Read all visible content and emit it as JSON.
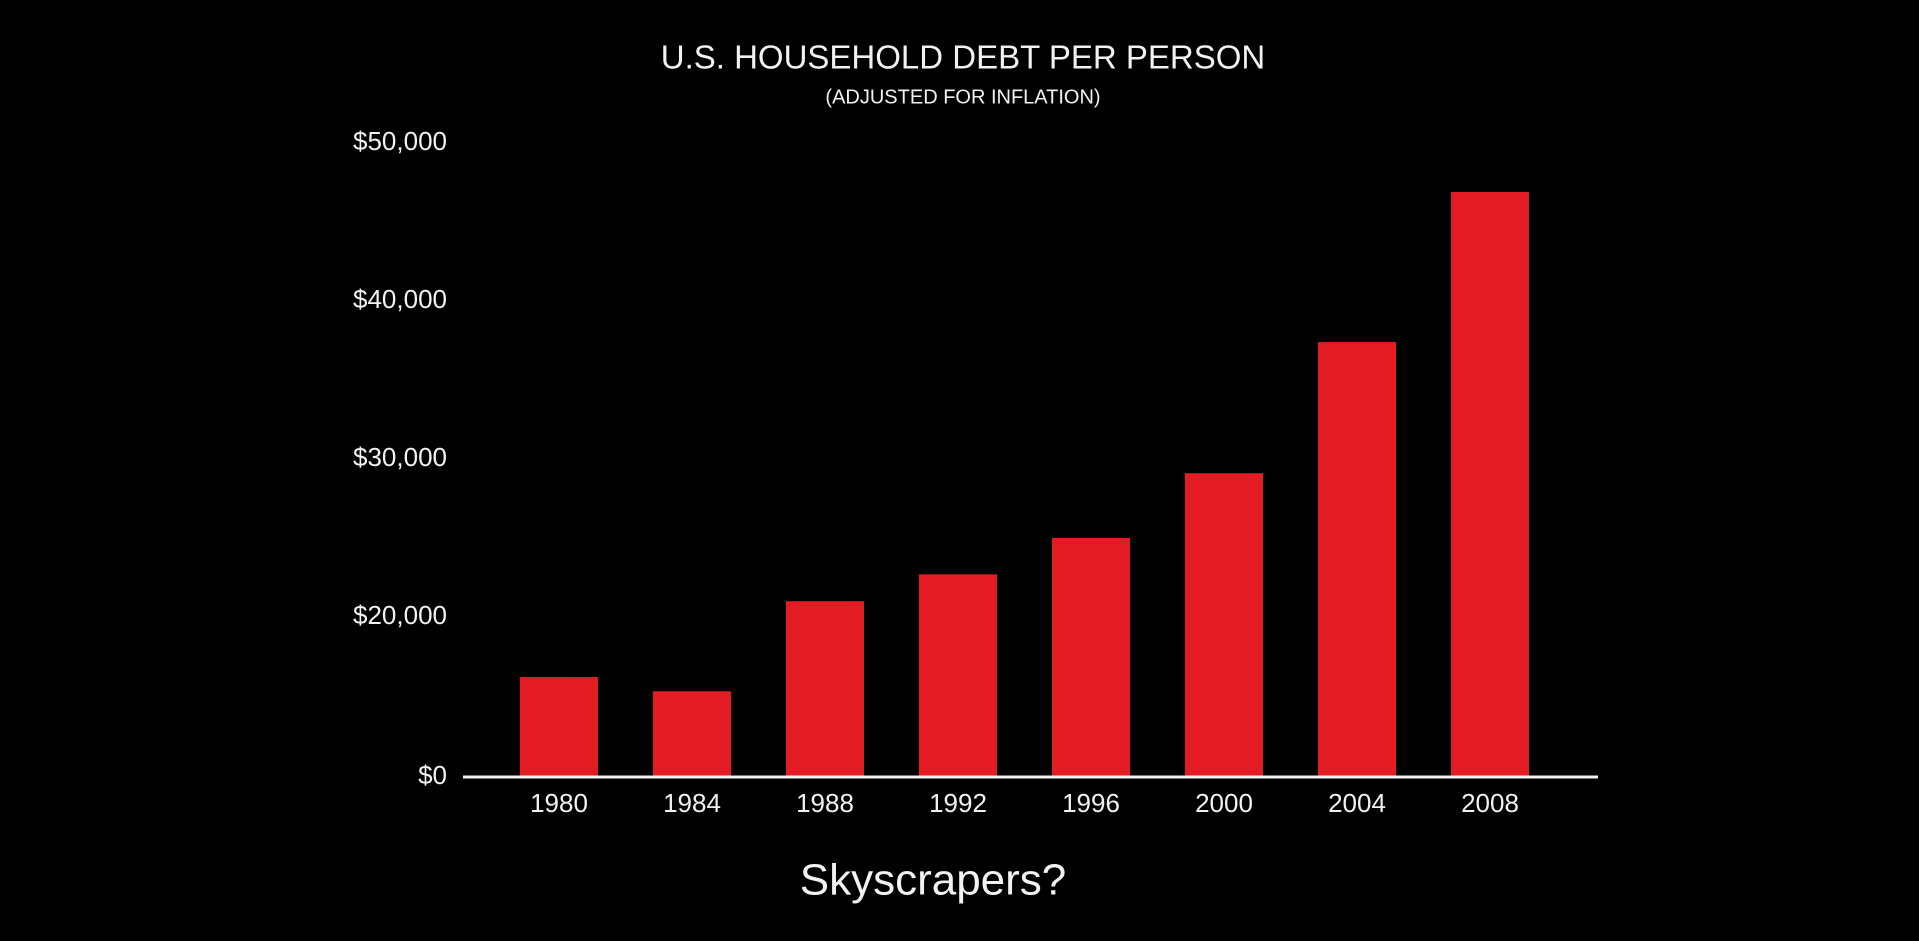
{
  "chart_data": {
    "type": "bar",
    "title": "U.S. HOUSEHOLD DEBT PER PERSON",
    "subtitle": "(ADJUSTED FOR INFLATION)",
    "categories": [
      "1980",
      "1984",
      "1988",
      "1992",
      "1996",
      "2000",
      "2004",
      "2008"
    ],
    "values": [
      16200,
      15300,
      21000,
      22700,
      25000,
      29100,
      37400,
      46900
    ],
    "color": "#e31b23",
    "ylim": [
      10000,
      50000
    ],
    "axis_break": true,
    "yticks": [
      {
        "value": 0,
        "label": "$0"
      },
      {
        "value": 20000,
        "label": "$20,000"
      },
      {
        "value": 30000,
        "label": "$30,000"
      },
      {
        "value": 40000,
        "label": "$40,000"
      },
      {
        "value": 50000,
        "label": "$50,000"
      }
    ],
    "grid": false
  },
  "caption": "Skyscrapers?"
}
